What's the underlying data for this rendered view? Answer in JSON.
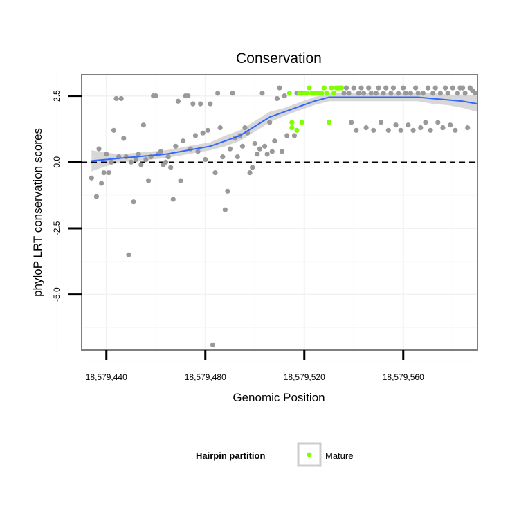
{
  "chart_data": {
    "type": "scatter",
    "title": "Conservation",
    "xlabel": "Genomic Position",
    "ylabel": "phyloP LRT conservation scores",
    "xlim": [
      18579430,
      18579590
    ],
    "ylim": [
      -7.1,
      3.3
    ],
    "x_ticks": [
      18579440,
      18579480,
      18579520,
      18579560
    ],
    "x_tick_labels": [
      "18,579,440",
      "18,579,480",
      "18,579,520",
      "18,579,560"
    ],
    "y_ticks": [
      2.5,
      0.0,
      -2.5,
      -5.0
    ],
    "y_tick_labels": [
      "2.5",
      "0.0",
      "-2.5",
      "-5.0"
    ],
    "grid": true,
    "reference_line": {
      "y": 0,
      "style": "dashed"
    },
    "legend": {
      "title": "Hairpin partition",
      "position": "bottom",
      "entries": [
        {
          "label": "Mature",
          "color": "#7FFF00"
        }
      ]
    },
    "colors": {
      "other_points": "#999999",
      "mature_points": "#7FFF00",
      "smooth_line": "#3366FF",
      "ribbon": "#D3D3D3"
    },
    "series": [
      {
        "name": "",
        "color": "#999999",
        "points": [
          [
            18579434,
            -0.6
          ],
          [
            18579436,
            -1.3
          ],
          [
            18579437,
            0.5
          ],
          [
            18579438,
            -0.8
          ],
          [
            18579439,
            -0.4
          ],
          [
            18579440,
            0.3
          ],
          [
            18579441,
            -0.4
          ],
          [
            18579442,
            0.0
          ],
          [
            18579443,
            1.2
          ],
          [
            18579444,
            2.4
          ],
          [
            18579445,
            0.2
          ],
          [
            18579446,
            2.4
          ],
          [
            18579447,
            0.9
          ],
          [
            18579448,
            0.2
          ],
          [
            18579449,
            -3.5
          ],
          [
            18579450,
            0.0
          ],
          [
            18579451,
            -1.5
          ],
          [
            18579452,
            0.1
          ],
          [
            18579453,
            0.3
          ],
          [
            18579454,
            -0.1
          ],
          [
            18579455,
            1.4
          ],
          [
            18579456,
            0.1
          ],
          [
            18579457,
            -0.7
          ],
          [
            18579458,
            0.2
          ],
          [
            18579459,
            2.5
          ],
          [
            18579460,
            2.5
          ],
          [
            18579461,
            0.3
          ],
          [
            18579462,
            0.4
          ],
          [
            18579463,
            -0.1
          ],
          [
            18579464,
            0.0
          ],
          [
            18579465,
            0.2
          ],
          [
            18579466,
            -0.2
          ],
          [
            18579467,
            -1.4
          ],
          [
            18579468,
            0.6
          ],
          [
            18579469,
            2.3
          ],
          [
            18579470,
            -0.7
          ],
          [
            18579471,
            0.8
          ],
          [
            18579472,
            2.5
          ],
          [
            18579473,
            2.5
          ],
          [
            18579474,
            0.5
          ],
          [
            18579475,
            2.2
          ],
          [
            18579476,
            1.0
          ],
          [
            18579477,
            0.4
          ],
          [
            18579478,
            2.2
          ],
          [
            18579479,
            1.1
          ],
          [
            18579480,
            0.1
          ],
          [
            18579481,
            1.2
          ],
          [
            18579482,
            2.2
          ],
          [
            18579483,
            -6.9
          ],
          [
            18579484,
            -0.4
          ],
          [
            18579485,
            2.6
          ],
          [
            18579486,
            1.3
          ],
          [
            18579487,
            0.2
          ],
          [
            18579488,
            -1.8
          ],
          [
            18579489,
            -1.1
          ],
          [
            18579490,
            0.5
          ],
          [
            18579491,
            2.6
          ],
          [
            18579492,
            0.9
          ],
          [
            18579493,
            0.2
          ],
          [
            18579494,
            1.0
          ],
          [
            18579495,
            0.6
          ],
          [
            18579496,
            1.3
          ],
          [
            18579497,
            1.1
          ],
          [
            18579498,
            -0.4
          ],
          [
            18579499,
            -0.2
          ],
          [
            18579500,
            0.7
          ],
          [
            18579501,
            0.3
          ],
          [
            18579502,
            0.5
          ],
          [
            18579503,
            2.6
          ],
          [
            18579504,
            0.6
          ],
          [
            18579505,
            0.3
          ],
          [
            18579506,
            1.5
          ],
          [
            18579507,
            0.4
          ],
          [
            18579508,
            0.8
          ],
          [
            18579509,
            2.4
          ],
          [
            18579510,
            2.8
          ],
          [
            18579511,
            0.4
          ],
          [
            18579512,
            2.5
          ],
          [
            18579513,
            1.0
          ],
          [
            18579516,
            1.0
          ],
          [
            18579517,
            2.6
          ],
          [
            18579519,
            2.6
          ],
          [
            18579536,
            2.6
          ],
          [
            18579537,
            2.8
          ],
          [
            18579538,
            2.6
          ],
          [
            18579539,
            1.5
          ],
          [
            18579540,
            2.8
          ],
          [
            18579541,
            1.2
          ],
          [
            18579542,
            2.6
          ],
          [
            18579543,
            2.8
          ],
          [
            18579544,
            2.6
          ],
          [
            18579545,
            1.3
          ],
          [
            18579546,
            2.8
          ],
          [
            18579547,
            2.6
          ],
          [
            18579548,
            1.2
          ],
          [
            18579549,
            2.6
          ],
          [
            18579550,
            2.8
          ],
          [
            18579551,
            1.5
          ],
          [
            18579552,
            2.6
          ],
          [
            18579553,
            2.8
          ],
          [
            18579554,
            1.2
          ],
          [
            18579555,
            2.6
          ],
          [
            18579556,
            2.8
          ],
          [
            18579557,
            1.4
          ],
          [
            18579558,
            2.6
          ],
          [
            18579559,
            1.2
          ],
          [
            18579560,
            2.8
          ],
          [
            18579561,
            2.6
          ],
          [
            18579562,
            1.4
          ],
          [
            18579563,
            2.6
          ],
          [
            18579564,
            1.2
          ],
          [
            18579565,
            2.8
          ],
          [
            18579566,
            2.6
          ],
          [
            18579567,
            1.3
          ],
          [
            18579568,
            2.6
          ],
          [
            18579569,
            1.5
          ],
          [
            18579570,
            2.8
          ],
          [
            18579571,
            1.2
          ],
          [
            18579572,
            2.6
          ],
          [
            18579573,
            2.8
          ],
          [
            18579574,
            1.5
          ],
          [
            18579575,
            2.6
          ],
          [
            18579576,
            1.3
          ],
          [
            18579577,
            2.8
          ],
          [
            18579578,
            2.6
          ],
          [
            18579579,
            1.4
          ],
          [
            18579580,
            2.8
          ],
          [
            18579581,
            1.2
          ],
          [
            18579582,
            2.6
          ],
          [
            18579583,
            2.8
          ],
          [
            18579584,
            2.8
          ],
          [
            18579585,
            2.6
          ],
          [
            18579586,
            1.3
          ],
          [
            18579587,
            2.8
          ],
          [
            18579588,
            2.7
          ],
          [
            18579589,
            2.6
          ]
        ]
      },
      {
        "name": "Mature",
        "color": "#7FFF00",
        "points": [
          [
            18579514,
            2.6
          ],
          [
            18579515,
            1.5
          ],
          [
            18579515,
            1.3
          ],
          [
            18579517,
            1.2
          ],
          [
            18579518,
            2.6
          ],
          [
            18579519,
            1.5
          ],
          [
            18579520,
            2.6
          ],
          [
            18579521,
            2.6
          ],
          [
            18579522,
            2.8
          ],
          [
            18579523,
            2.6
          ],
          [
            18579524,
            2.6
          ],
          [
            18579525,
            2.6
          ],
          [
            18579526,
            2.6
          ],
          [
            18579527,
            2.6
          ],
          [
            18579528,
            2.8
          ],
          [
            18579529,
            2.6
          ],
          [
            18579530,
            1.5
          ],
          [
            18579531,
            2.8
          ],
          [
            18579532,
            2.6
          ],
          [
            18579533,
            2.8
          ],
          [
            18579534,
            2.8
          ],
          [
            18579535,
            2.8
          ]
        ]
      }
    ],
    "smooth": {
      "x": [
        18579434,
        18579440,
        18579446,
        18579452,
        18579458,
        18579464,
        18579470,
        18579476,
        18579482,
        18579488,
        18579494,
        18579500,
        18579506,
        18579512,
        18579518,
        18579524,
        18579530,
        18579536,
        18579542,
        18579548,
        18579554,
        18579560,
        18579566,
        18579572,
        18579578,
        18579584,
        18579590
      ],
      "y": [
        0.05,
        0.1,
        0.15,
        0.2,
        0.25,
        0.3,
        0.4,
        0.5,
        0.6,
        0.8,
        1.0,
        1.35,
        1.7,
        1.9,
        2.1,
        2.3,
        2.45,
        2.45,
        2.45,
        2.45,
        2.45,
        2.45,
        2.45,
        2.4,
        2.35,
        2.3,
        2.2
      ],
      "lower": [
        -0.35,
        -0.15,
        0.0,
        0.05,
        0.1,
        0.15,
        0.25,
        0.35,
        0.45,
        0.6,
        0.8,
        1.15,
        1.5,
        1.75,
        1.95,
        2.15,
        2.3,
        2.3,
        2.3,
        2.3,
        2.3,
        2.3,
        2.3,
        2.2,
        2.15,
        2.05,
        1.9
      ],
      "upper": [
        0.45,
        0.35,
        0.3,
        0.35,
        0.4,
        0.45,
        0.55,
        0.65,
        0.75,
        1.0,
        1.2,
        1.55,
        1.9,
        2.05,
        2.25,
        2.45,
        2.6,
        2.6,
        2.6,
        2.6,
        2.6,
        2.6,
        2.6,
        2.6,
        2.55,
        2.55,
        2.5
      ]
    }
  }
}
